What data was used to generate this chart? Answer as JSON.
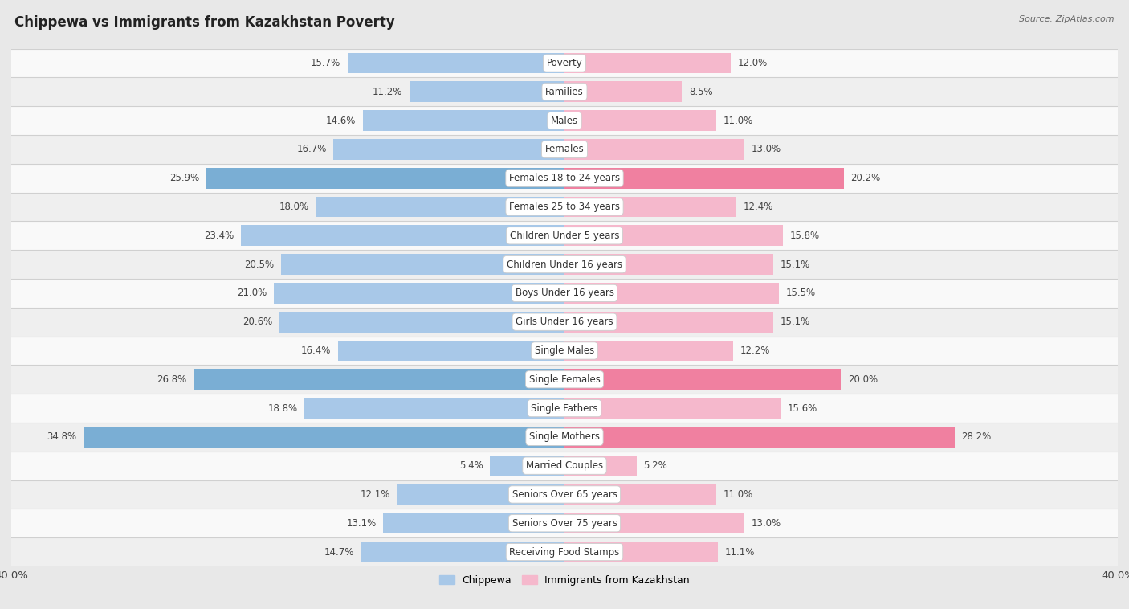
{
  "title": "Chippewa vs Immigrants from Kazakhstan Poverty",
  "source": "Source: ZipAtlas.com",
  "categories": [
    "Poverty",
    "Families",
    "Males",
    "Females",
    "Females 18 to 24 years",
    "Females 25 to 34 years",
    "Children Under 5 years",
    "Children Under 16 years",
    "Boys Under 16 years",
    "Girls Under 16 years",
    "Single Males",
    "Single Females",
    "Single Fathers",
    "Single Mothers",
    "Married Couples",
    "Seniors Over 65 years",
    "Seniors Over 75 years",
    "Receiving Food Stamps"
  ],
  "chippewa_values": [
    15.7,
    11.2,
    14.6,
    16.7,
    25.9,
    18.0,
    23.4,
    20.5,
    21.0,
    20.6,
    16.4,
    26.8,
    18.8,
    34.8,
    5.4,
    12.1,
    13.1,
    14.7
  ],
  "kazakhstan_values": [
    12.0,
    8.5,
    11.0,
    13.0,
    20.2,
    12.4,
    15.8,
    15.1,
    15.5,
    15.1,
    12.2,
    20.0,
    15.6,
    28.2,
    5.2,
    11.0,
    13.0,
    11.1
  ],
  "chippewa_color_normal": "#a8c8e8",
  "chippewa_color_highlight": "#7aaed4",
  "kazakhstan_color_normal": "#f5b8cc",
  "kazakhstan_color_highlight": "#f080a0",
  "row_color_even": "#f9f9f9",
  "row_color_odd": "#efefef",
  "background_color": "#e8e8e8",
  "max_value": 40.0,
  "label_fontsize": 8.5,
  "title_fontsize": 12,
  "bar_height": 0.72
}
